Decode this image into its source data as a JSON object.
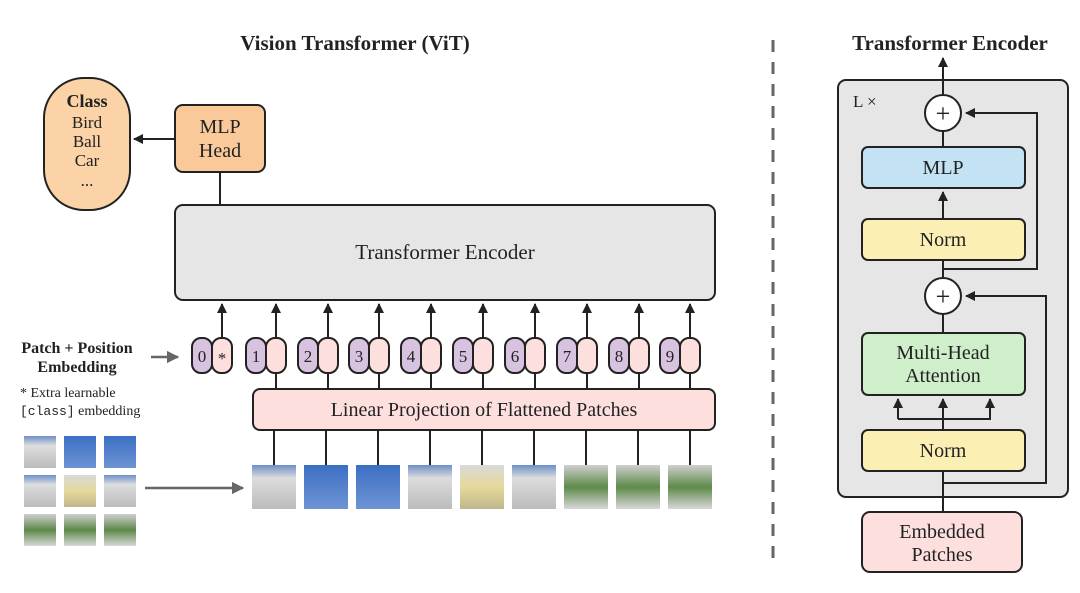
{
  "left": {
    "title": "Vision Transformer (ViT)",
    "class_box": {
      "title": "Class",
      "items": [
        "Bird",
        "Ball",
        "Car",
        "..."
      ]
    },
    "mlp_head": [
      "MLP",
      "Head"
    ],
    "encoder_label": "Transformer Encoder",
    "embedding_label": [
      "Patch + Position",
      "Embedding"
    ],
    "footnote": {
      "line1": "* Extra learnable",
      "code": "[class]",
      "line2": " embedding"
    },
    "tokens": [
      "0",
      "1",
      "2",
      "3",
      "4",
      "5",
      "6",
      "7",
      "8",
      "9"
    ],
    "class_token_marker": "*",
    "projection_label": "Linear Projection of Flattened Patches"
  },
  "right": {
    "title": "Transformer Encoder",
    "repeat_label": "L ×",
    "plus": "+",
    "mlp": "MLP",
    "norm": "Norm",
    "attention": [
      "Multi-Head",
      "Attention"
    ],
    "embedded": [
      "Embedded",
      "Patches"
    ]
  },
  "colors": {
    "class": "#fbd3a6",
    "mlp_head": "#f9c99a",
    "encoder": "#e6e6e6",
    "token_position": "#d7c3df",
    "token_patch": "#fde0de",
    "projection": "#fde0de",
    "mlp": "#c3e3f5",
    "norm": "#fcefb4",
    "attention": "#cfeeca",
    "embedded": "#fde0de",
    "sky": "#3b6fc4"
  }
}
